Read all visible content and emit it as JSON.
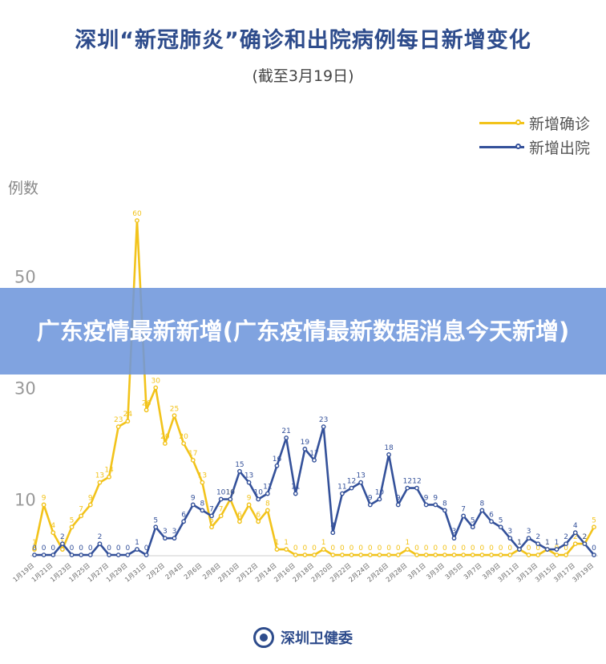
{
  "colors": {
    "confirmed": "#f2c31b",
    "discharged": "#34519a",
    "axis_text": "#888888",
    "title": "#2e4c8c"
  },
  "banner": {
    "text": "广东疫情最新新增(广东疫情最新数据消息今天新增)"
  },
  "footer": {
    "org": "深圳卫健委",
    "logo_icon": "health-commission-logo"
  },
  "chart_data": {
    "type": "line",
    "title": "深圳“新冠肺炎”确诊和出院病例每日新增变化",
    "subtitle": "(截至3月19日)",
    "ylabel": "例数",
    "xlabel": "",
    "ylim": [
      0,
      60
    ],
    "yticks": [
      10,
      30,
      50
    ],
    "legend_position": "top-right",
    "grid": false,
    "x": [
      "1月19日",
      "1月20日",
      "1月21日",
      "1月22日",
      "1月23日",
      "1月24日",
      "1月25日",
      "1月26日",
      "1月27日",
      "1月28日",
      "1月29日",
      "1月30日",
      "1月31日",
      "2月1日",
      "2月2日",
      "2月3日",
      "2月4日",
      "2月5日",
      "2月6日",
      "2月7日",
      "2月8日",
      "2月9日",
      "2月10日",
      "2月11日",
      "2月12日",
      "2月13日",
      "2月14日",
      "2月15日",
      "2月16日",
      "2月17日",
      "2月18日",
      "2月19日",
      "2月20日",
      "2月21日",
      "2月22日",
      "2月23日",
      "2月24日",
      "2月25日",
      "2月26日",
      "2月27日",
      "2月28日",
      "2月29日",
      "3月1日",
      "3月2日",
      "3月3日",
      "3月4日",
      "3月5日",
      "3月6日",
      "3月7日",
      "3月8日",
      "3月9日",
      "3月10日",
      "3月11日",
      "3月12日",
      "3月13日",
      "3月14日",
      "3月15日",
      "3月16日",
      "3月17日",
      "3月18日",
      "3月19日"
    ],
    "xtick_labels": [
      "1月19日",
      "1月21日",
      "1月23日",
      "1月25日",
      "1月27日",
      "1月29日",
      "1月31日",
      "2月2日",
      "2月4日",
      "2月6日",
      "2月8日",
      "2月10日",
      "2月12日",
      "2月14日",
      "2月16日",
      "2月18日",
      "2月20日",
      "2月22日",
      "2月24日",
      "2月26日",
      "2月28日",
      "3月1日",
      "3月3日",
      "3月5日",
      "3月7日",
      "3月9日",
      "3月11日",
      "3月13日",
      "3月15日",
      "3月17日",
      "3月19日"
    ],
    "series": [
      {
        "name": "新增确诊",
        "values": [
          1,
          9,
          4,
          1,
          5,
          7,
          9,
          13,
          14,
          23,
          24,
          60,
          26,
          30,
          20,
          25,
          20,
          17,
          13,
          5,
          7,
          10,
          6,
          9,
          6,
          8,
          1,
          1,
          0,
          0,
          0,
          1,
          0,
          0,
          0,
          0,
          0,
          0,
          0,
          0,
          1,
          0,
          0,
          0,
          0,
          0,
          0,
          0,
          0,
          0,
          0,
          0,
          1,
          0,
          0,
          1,
          0,
          0,
          2,
          2,
          5
        ]
      },
      {
        "name": "新增出院",
        "values": [
          0,
          0,
          0,
          2,
          0,
          0,
          0,
          2,
          0,
          0,
          0,
          1,
          0,
          5,
          3,
          3,
          6,
          9,
          8,
          7,
          10,
          10,
          15,
          13,
          10,
          11,
          16,
          21,
          11,
          19,
          17,
          23,
          4,
          11,
          12,
          13,
          9,
          10,
          18,
          9,
          12,
          12,
          9,
          9,
          8,
          3,
          7,
          5,
          8,
          6,
          5,
          3,
          1,
          3,
          2,
          1,
          1,
          2,
          4,
          2,
          0
        ]
      }
    ]
  }
}
